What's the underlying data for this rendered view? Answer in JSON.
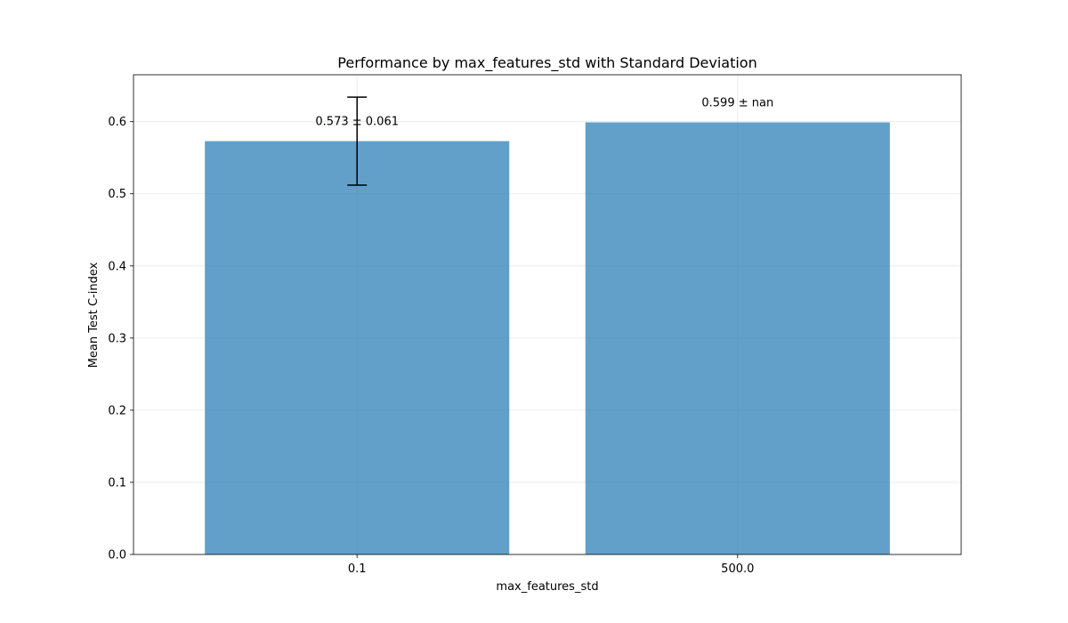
{
  "chart_data": {
    "type": "bar",
    "title": "Performance by max_features_std with Standard Deviation",
    "xlabel": "max_features_std",
    "ylabel": "Mean Test C-index",
    "categories": [
      "0.1",
      "500.0"
    ],
    "values": [
      0.573,
      0.599
    ],
    "errors": [
      0.061,
      null
    ],
    "data_labels": [
      "0.573 ± 0.061",
      "0.599 ± nan"
    ],
    "ylim": [
      0,
      0.665
    ],
    "yticks": [
      0.0,
      0.1,
      0.2,
      0.3,
      0.4,
      0.5,
      0.6
    ],
    "ytick_labels": [
      "0.0",
      "0.1",
      "0.2",
      "0.3",
      "0.4",
      "0.5",
      "0.6"
    ],
    "grid": true,
    "bar_color": "#1f77b4",
    "bar_alpha": 0.7
  }
}
